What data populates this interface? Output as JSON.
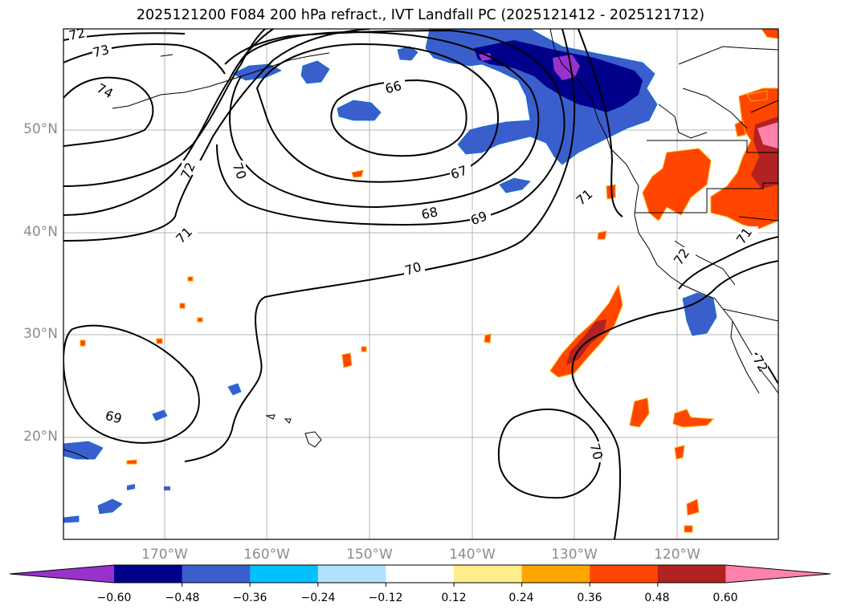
{
  "title": "2025121200 F084 200 hPa refract., IVT Landfall PC (2025121412 - 2025121712)",
  "lat_labels": [
    "50°N",
    "40°N",
    "30°N",
    "20°N"
  ],
  "lon_labels": [
    "170°W",
    "160°W",
    "150°W",
    "140°W",
    "130°W",
    "120°W"
  ],
  "contour_labels": [
    "72",
    "73",
    "74",
    "66",
    "67",
    "68",
    "69",
    "70",
    "71",
    "72",
    "70",
    "71",
    "69",
    "70",
    "71",
    "72",
    "72"
  ],
  "colorbar": {
    "ticks": [
      "−0.60",
      "−0.48",
      "−0.36",
      "−0.24",
      "−0.12",
      "0.12",
      "0.24",
      "0.36",
      "0.48",
      "0.60"
    ],
    "colors": [
      "#9932cc",
      "#00008b",
      "#3a5fcd",
      "#00bfff",
      "#b0e2ff",
      "#ffffff",
      "#ffec8b",
      "#ffa500",
      "#ff4500",
      "#b22222",
      "#ff82ab"
    ]
  },
  "legend_colors": {
    "neg_strong": "#00008b",
    "neg_med": "#3a5fcd",
    "neg_weak": "#00bfff",
    "neg_faint": "#b0e2ff",
    "neg_extreme": "#9932cc",
    "pos_faint": "#ffec8b",
    "pos_weak": "#ffa500",
    "pos_med": "#ff4500",
    "pos_strong": "#b22222",
    "pos_extreme": "#ff82ab"
  }
}
